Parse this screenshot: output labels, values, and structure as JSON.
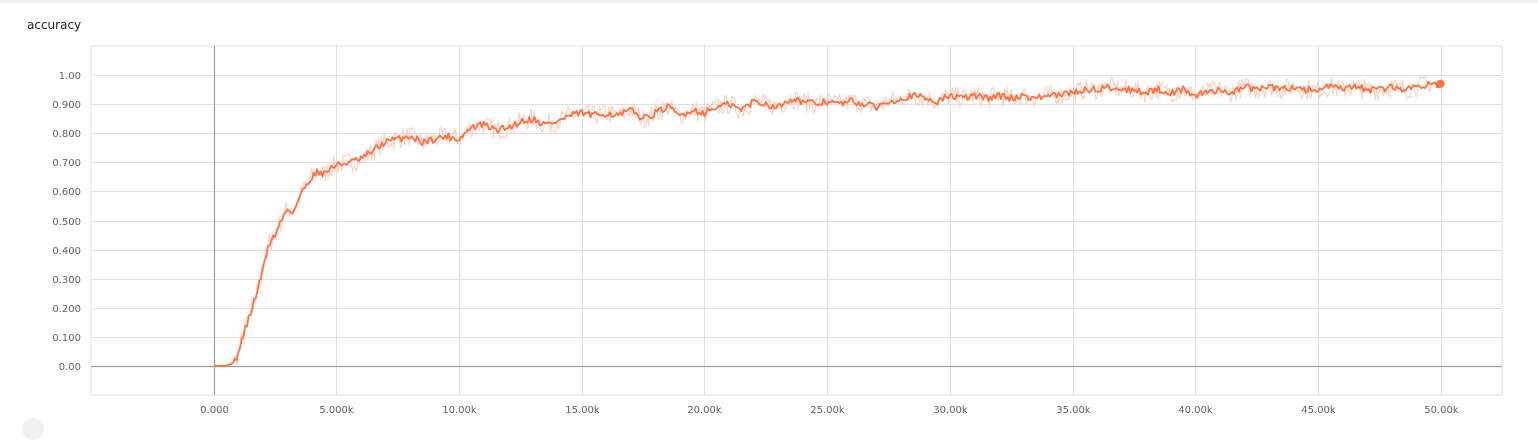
{
  "chart_data": {
    "type": "line",
    "title": "accuracy",
    "xlabel": "",
    "ylabel": "",
    "xlim": [
      -5000,
      52500
    ],
    "ylim": [
      -0.1,
      1.1
    ],
    "x_ticks": [
      0,
      5000,
      10000,
      15000,
      20000,
      25000,
      30000,
      35000,
      40000,
      45000,
      50000
    ],
    "x_tick_labels": [
      "0.000",
      "5.000k",
      "10.00k",
      "15.00k",
      "20.00k",
      "25.00k",
      "30.00k",
      "35.00k",
      "40.00k",
      "45.00k",
      "50.00k"
    ],
    "y_ticks": [
      0,
      0.1,
      0.2,
      0.3,
      0.4,
      0.5,
      0.6,
      0.7,
      0.8,
      0.9,
      1.0
    ],
    "y_tick_labels": [
      "0.00",
      "0.100",
      "0.200",
      "0.300",
      "0.400",
      "0.500",
      "0.600",
      "0.700",
      "0.800",
      "0.900",
      "1.00"
    ],
    "grid": true,
    "legend": "none",
    "colors": {
      "smoothed": "#ff7043",
      "raw": "#fbcdbd",
      "grid": "#e0e0e0",
      "axis": "#9e9e9e"
    },
    "series": [
      {
        "x": [
          0,
          500,
          800,
          1000,
          1250,
          1500,
          1750,
          2000,
          2250,
          2500,
          2750,
          3000,
          3250,
          3500,
          3750,
          4000,
          4250,
          4500,
          4750,
          5000,
          5500,
          6000,
          6500,
          7000,
          7500,
          8000,
          8500,
          9000,
          9500,
          10000,
          10500,
          11000,
          11500,
          12000,
          12500,
          13000,
          13500,
          14000,
          14500,
          15000,
          15500,
          16000,
          16500,
          17000,
          17500,
          18000,
          18500,
          19000,
          19500,
          20000,
          20500,
          21000,
          21500,
          22000,
          22500,
          23000,
          23500,
          24000,
          24500,
          25000,
          25500,
          26000,
          26500,
          27000,
          27500,
          28000,
          28500,
          29000,
          29500,
          30000,
          30500,
          31000,
          31500,
          32000,
          32500,
          33000,
          33500,
          34000,
          34500,
          35000,
          35500,
          36000,
          36500,
          37000,
          37500,
          38000,
          38500,
          39000,
          39500,
          40000,
          40500,
          41000,
          41500,
          42000,
          42500,
          43000,
          43500,
          44000,
          44500,
          45000,
          45500,
          46000,
          46500,
          47000,
          47500,
          48000,
          48500,
          49000,
          49500,
          50000
        ],
        "values": [
          0.0,
          0.0,
          0.01,
          0.04,
          0.12,
          0.18,
          0.25,
          0.33,
          0.42,
          0.45,
          0.5,
          0.54,
          0.53,
          0.58,
          0.62,
          0.65,
          0.67,
          0.66,
          0.68,
          0.69,
          0.7,
          0.71,
          0.74,
          0.77,
          0.78,
          0.79,
          0.77,
          0.78,
          0.79,
          0.78,
          0.82,
          0.83,
          0.81,
          0.82,
          0.84,
          0.85,
          0.83,
          0.84,
          0.86,
          0.87,
          0.86,
          0.87,
          0.86,
          0.88,
          0.85,
          0.87,
          0.89,
          0.86,
          0.88,
          0.87,
          0.89,
          0.9,
          0.88,
          0.91,
          0.9,
          0.89,
          0.92,
          0.91,
          0.9,
          0.91,
          0.9,
          0.91,
          0.9,
          0.89,
          0.91,
          0.92,
          0.93,
          0.92,
          0.91,
          0.93,
          0.92,
          0.93,
          0.92,
          0.93,
          0.92,
          0.93,
          0.92,
          0.93,
          0.93,
          0.94,
          0.95,
          0.95,
          0.96,
          0.95,
          0.95,
          0.94,
          0.95,
          0.94,
          0.95,
          0.93,
          0.94,
          0.95,
          0.94,
          0.96,
          0.95,
          0.96,
          0.95,
          0.96,
          0.95,
          0.95,
          0.96,
          0.95,
          0.96,
          0.95,
          0.95,
          0.96,
          0.95,
          0.96,
          0.97,
          0.97
        ]
      }
    ]
  }
}
